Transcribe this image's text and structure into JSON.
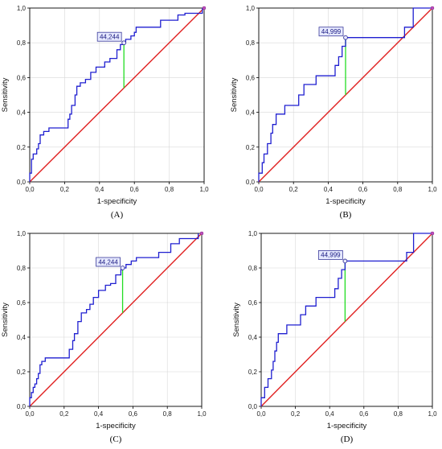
{
  "colors": {
    "roc": "#1f1fd0",
    "reference": "#e02020",
    "youden": "#22dd22",
    "cutoff_box_fill": "#e6e9ff",
    "cutoff_box_stroke": "#3a3a9a",
    "grid": "#d8d8d8"
  },
  "chart_data": [
    {
      "type": "line",
      "panel_label": "(A)",
      "xlabel": "1-specificity",
      "ylabel": "Sensitivity",
      "xlim": [
        0,
        1
      ],
      "ylim": [
        0,
        1
      ],
      "xticks": [
        "0,0",
        "0,2",
        "0,4",
        "0,6",
        "0,8",
        "1,0"
      ],
      "yticks": [
        "0,0",
        "0,2",
        "0,4",
        "0,6",
        "0,8",
        "1,0"
      ],
      "grid": true,
      "reference_line": [
        [
          0,
          0
        ],
        [
          1,
          1
        ]
      ],
      "cutoff": {
        "label": "44,244",
        "x": 0.54,
        "y": 0.8
      },
      "series": [
        {
          "points": [
            [
              0,
              0
            ],
            [
              0,
              0.05
            ],
            [
              0.01,
              0.05
            ],
            [
              0.01,
              0.13
            ],
            [
              0.02,
              0.13
            ],
            [
              0.02,
              0.16
            ],
            [
              0.04,
              0.16
            ],
            [
              0.04,
              0.19
            ],
            [
              0.05,
              0.19
            ],
            [
              0.05,
              0.22
            ],
            [
              0.06,
              0.22
            ],
            [
              0.06,
              0.27
            ],
            [
              0.08,
              0.27
            ],
            [
              0.08,
              0.29
            ],
            [
              0.11,
              0.29
            ],
            [
              0.11,
              0.31
            ],
            [
              0.22,
              0.31
            ],
            [
              0.22,
              0.36
            ],
            [
              0.23,
              0.36
            ],
            [
              0.23,
              0.39
            ],
            [
              0.24,
              0.39
            ],
            [
              0.24,
              0.44
            ],
            [
              0.26,
              0.44
            ],
            [
              0.26,
              0.5
            ],
            [
              0.27,
              0.5
            ],
            [
              0.27,
              0.55
            ],
            [
              0.29,
              0.55
            ],
            [
              0.29,
              0.57
            ],
            [
              0.32,
              0.57
            ],
            [
              0.32,
              0.59
            ],
            [
              0.35,
              0.59
            ],
            [
              0.35,
              0.63
            ],
            [
              0.38,
              0.63
            ],
            [
              0.38,
              0.66
            ],
            [
              0.43,
              0.66
            ],
            [
              0.43,
              0.69
            ],
            [
              0.46,
              0.69
            ],
            [
              0.46,
              0.71
            ],
            [
              0.5,
              0.71
            ],
            [
              0.5,
              0.76
            ],
            [
              0.52,
              0.76
            ],
            [
              0.52,
              0.79
            ],
            [
              0.54,
              0.79
            ],
            [
              0.54,
              0.8
            ],
            [
              0.55,
              0.8
            ],
            [
              0.55,
              0.82
            ],
            [
              0.58,
              0.82
            ],
            [
              0.58,
              0.84
            ],
            [
              0.6,
              0.84
            ],
            [
              0.6,
              0.86
            ],
            [
              0.61,
              0.86
            ],
            [
              0.61,
              0.89
            ],
            [
              0.75,
              0.89
            ],
            [
              0.75,
              0.93
            ],
            [
              0.85,
              0.93
            ],
            [
              0.85,
              0.96
            ],
            [
              0.89,
              0.96
            ],
            [
              0.89,
              0.97
            ],
            [
              0.99,
              0.97
            ],
            [
              0.99,
              1
            ]
          ]
        }
      ]
    },
    {
      "type": "line",
      "panel_label": "(B)",
      "xlabel": "1-specificity",
      "ylabel": "Sensitivity",
      "xlim": [
        0,
        1
      ],
      "ylim": [
        0,
        1
      ],
      "xticks": [
        "0,0",
        "0,2",
        "0,4",
        "0,6",
        "0,8",
        "1,0"
      ],
      "yticks": [
        "0,0",
        "0,2",
        "0,4",
        "0,6",
        "0,8",
        "1,0"
      ],
      "grid": true,
      "reference_line": [
        [
          0,
          0
        ],
        [
          1,
          1
        ]
      ],
      "cutoff": {
        "label": "44,999",
        "x": 0.5,
        "y": 0.83
      },
      "series": [
        {
          "points": [
            [
              0,
              0
            ],
            [
              0,
              0.05
            ],
            [
              0.02,
              0.05
            ],
            [
              0.02,
              0.11
            ],
            [
              0.03,
              0.11
            ],
            [
              0.03,
              0.16
            ],
            [
              0.05,
              0.16
            ],
            [
              0.05,
              0.22
            ],
            [
              0.07,
              0.22
            ],
            [
              0.07,
              0.28
            ],
            [
              0.08,
              0.28
            ],
            [
              0.08,
              0.33
            ],
            [
              0.1,
              0.33
            ],
            [
              0.1,
              0.39
            ],
            [
              0.15,
              0.39
            ],
            [
              0.15,
              0.44
            ],
            [
              0.23,
              0.44
            ],
            [
              0.23,
              0.5
            ],
            [
              0.26,
              0.5
            ],
            [
              0.26,
              0.56
            ],
            [
              0.33,
              0.56
            ],
            [
              0.33,
              0.61
            ],
            [
              0.44,
              0.61
            ],
            [
              0.44,
              0.67
            ],
            [
              0.46,
              0.67
            ],
            [
              0.46,
              0.72
            ],
            [
              0.48,
              0.72
            ],
            [
              0.48,
              0.78
            ],
            [
              0.5,
              0.78
            ],
            [
              0.5,
              0.83
            ],
            [
              0.84,
              0.83
            ],
            [
              0.84,
              0.89
            ],
            [
              0.89,
              0.89
            ],
            [
              0.89,
              1
            ],
            [
              1,
              1
            ]
          ]
        }
      ]
    },
    {
      "type": "line",
      "panel_label": "(C)",
      "xlabel": "1-specificity",
      "ylabel": "Sensitivity",
      "xlim": [
        0,
        1
      ],
      "ylim": [
        0,
        1
      ],
      "xticks": [
        "0,0",
        "0,2",
        "0,4",
        "0,6",
        "0,8",
        "1,0"
      ],
      "yticks": [
        "0,0",
        "0,2",
        "0,4",
        "0,6",
        "0,8",
        "1,0"
      ],
      "grid": true,
      "reference_line": [
        [
          0,
          0
        ],
        [
          1,
          1
        ]
      ],
      "cutoff": {
        "label": "44,244",
        "x": 0.54,
        "y": 0.8
      },
      "series": [
        {
          "points": [
            [
              0,
              0
            ],
            [
              0,
              0.05
            ],
            [
              0.01,
              0.05
            ],
            [
              0.01,
              0.08
            ],
            [
              0.02,
              0.08
            ],
            [
              0.02,
              0.11
            ],
            [
              0.03,
              0.11
            ],
            [
              0.03,
              0.13
            ],
            [
              0.04,
              0.13
            ],
            [
              0.04,
              0.16
            ],
            [
              0.05,
              0.16
            ],
            [
              0.05,
              0.19
            ],
            [
              0.06,
              0.19
            ],
            [
              0.06,
              0.24
            ],
            [
              0.07,
              0.24
            ],
            [
              0.07,
              0.26
            ],
            [
              0.09,
              0.26
            ],
            [
              0.09,
              0.28
            ],
            [
              0.23,
              0.28
            ],
            [
              0.23,
              0.33
            ],
            [
              0.25,
              0.33
            ],
            [
              0.25,
              0.38
            ],
            [
              0.26,
              0.38
            ],
            [
              0.26,
              0.42
            ],
            [
              0.28,
              0.42
            ],
            [
              0.28,
              0.49
            ],
            [
              0.3,
              0.49
            ],
            [
              0.3,
              0.54
            ],
            [
              0.33,
              0.54
            ],
            [
              0.33,
              0.56
            ],
            [
              0.35,
              0.56
            ],
            [
              0.35,
              0.59
            ],
            [
              0.37,
              0.59
            ],
            [
              0.37,
              0.63
            ],
            [
              0.4,
              0.63
            ],
            [
              0.4,
              0.67
            ],
            [
              0.44,
              0.67
            ],
            [
              0.44,
              0.7
            ],
            [
              0.47,
              0.7
            ],
            [
              0.47,
              0.71
            ],
            [
              0.5,
              0.71
            ],
            [
              0.5,
              0.76
            ],
            [
              0.53,
              0.76
            ],
            [
              0.53,
              0.79
            ],
            [
              0.54,
              0.79
            ],
            [
              0.54,
              0.8
            ],
            [
              0.56,
              0.8
            ],
            [
              0.56,
              0.82
            ],
            [
              0.59,
              0.82
            ],
            [
              0.59,
              0.84
            ],
            [
              0.62,
              0.84
            ],
            [
              0.62,
              0.86
            ],
            [
              0.75,
              0.86
            ],
            [
              0.75,
              0.89
            ],
            [
              0.82,
              0.89
            ],
            [
              0.82,
              0.94
            ],
            [
              0.87,
              0.94
            ],
            [
              0.87,
              0.97
            ],
            [
              0.98,
              0.97
            ],
            [
              0.98,
              1
            ]
          ]
        }
      ]
    },
    {
      "type": "line",
      "panel_label": "(D)",
      "xlabel": "1-specificity",
      "ylabel": "Sensitivity",
      "xlim": [
        0,
        1
      ],
      "ylim": [
        0,
        1
      ],
      "xticks": [
        "0,0",
        "0,2",
        "0,4",
        "0,6",
        "0,8",
        "1,0"
      ],
      "yticks": [
        "0,0",
        "0,2",
        "0,4",
        "0,6",
        "0,8",
        "1,0"
      ],
      "grid": true,
      "reference_line": [
        [
          0,
          0
        ],
        [
          1,
          1
        ]
      ],
      "cutoff": {
        "label": "44,999",
        "x": 0.49,
        "y": 0.84
      },
      "series": [
        {
          "points": [
            [
              0,
              0
            ],
            [
              0,
              0.05
            ],
            [
              0.02,
              0.05
            ],
            [
              0.02,
              0.11
            ],
            [
              0.04,
              0.11
            ],
            [
              0.04,
              0.16
            ],
            [
              0.06,
              0.16
            ],
            [
              0.06,
              0.21
            ],
            [
              0.07,
              0.21
            ],
            [
              0.07,
              0.26
            ],
            [
              0.08,
              0.26
            ],
            [
              0.08,
              0.32
            ],
            [
              0.09,
              0.32
            ],
            [
              0.09,
              0.37
            ],
            [
              0.1,
              0.37
            ],
            [
              0.1,
              0.42
            ],
            [
              0.15,
              0.42
            ],
            [
              0.15,
              0.47
            ],
            [
              0.23,
              0.47
            ],
            [
              0.23,
              0.53
            ],
            [
              0.26,
              0.53
            ],
            [
              0.26,
              0.58
            ],
            [
              0.32,
              0.58
            ],
            [
              0.32,
              0.63
            ],
            [
              0.43,
              0.63
            ],
            [
              0.43,
              0.68
            ],
            [
              0.45,
              0.68
            ],
            [
              0.45,
              0.74
            ],
            [
              0.47,
              0.74
            ],
            [
              0.47,
              0.79
            ],
            [
              0.49,
              0.79
            ],
            [
              0.49,
              0.84
            ],
            [
              0.85,
              0.84
            ],
            [
              0.85,
              0.89
            ],
            [
              0.89,
              0.89
            ],
            [
              0.89,
              1
            ],
            [
              1,
              1
            ]
          ]
        }
      ]
    }
  ]
}
